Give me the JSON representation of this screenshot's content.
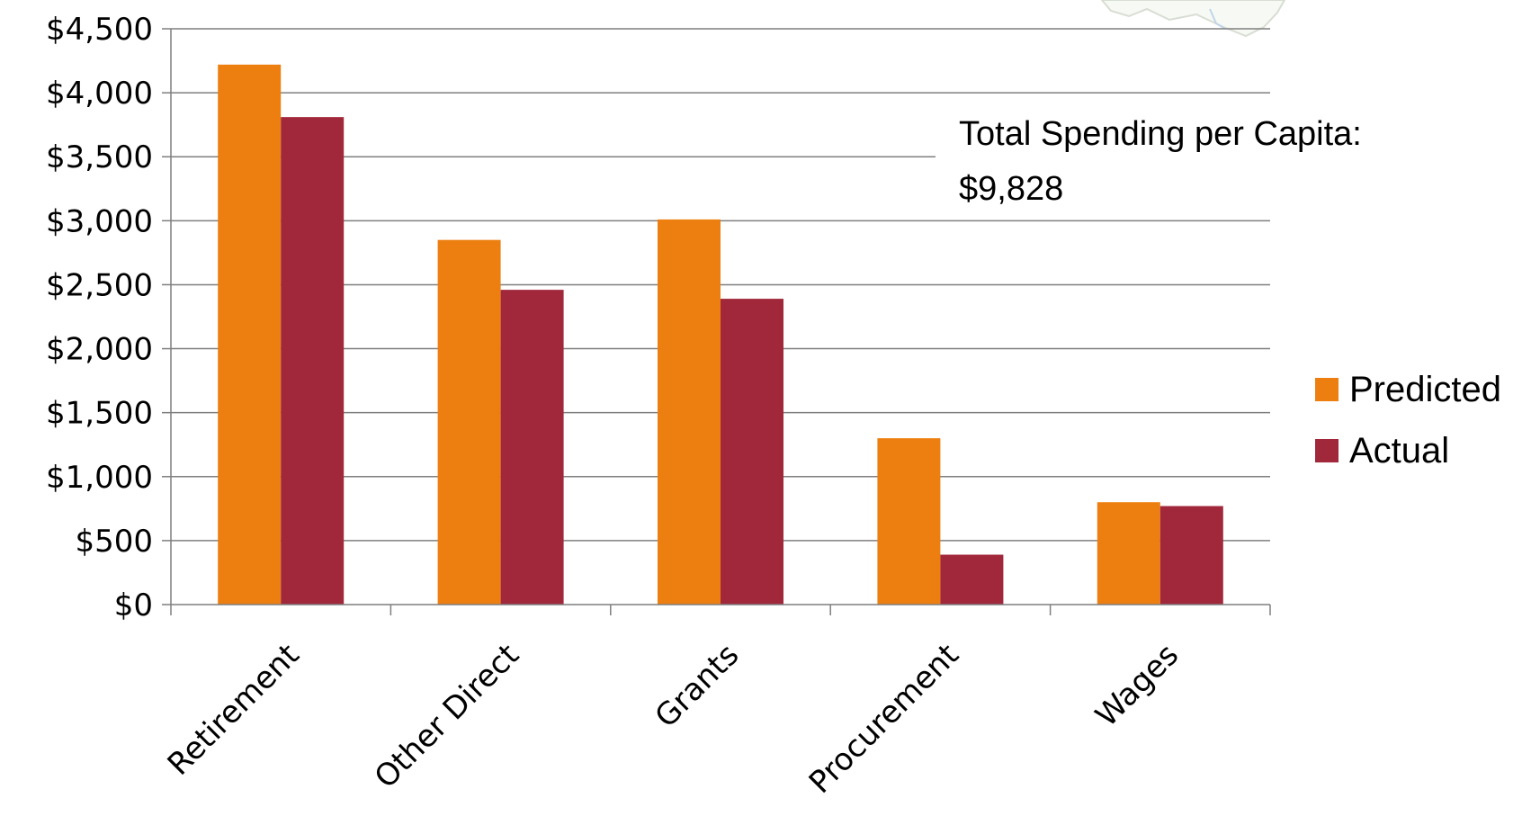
{
  "chart_data": {
    "type": "bar",
    "title": "",
    "xlabel": "",
    "ylabel": "",
    "categories": [
      "Retirement",
      "Other Direct",
      "Grants",
      "Procurement",
      "Wages"
    ],
    "series": [
      {
        "name": "Predicted",
        "color": "#ED7F10",
        "values": [
          4220,
          2850,
          3010,
          1300,
          800
        ]
      },
      {
        "name": "Actual",
        "color": "#A1283A",
        "values": [
          3810,
          2460,
          2390,
          390,
          770
        ]
      }
    ],
    "ylim": [
      0,
      4500
    ],
    "yticks": [
      0,
      500,
      1000,
      1500,
      2000,
      2500,
      3000,
      3500,
      4000,
      4500
    ],
    "ytick_labels": [
      "$0",
      "$500",
      "$1,000",
      "$1,500",
      "$2,000",
      "$2,500",
      "$3,000",
      "$3,500",
      "$4,000",
      "$4,500"
    ],
    "grid": true,
    "legend": "right",
    "annotation": {
      "line1": "Total Spending per Capita:",
      "line2": "$9,828"
    }
  }
}
